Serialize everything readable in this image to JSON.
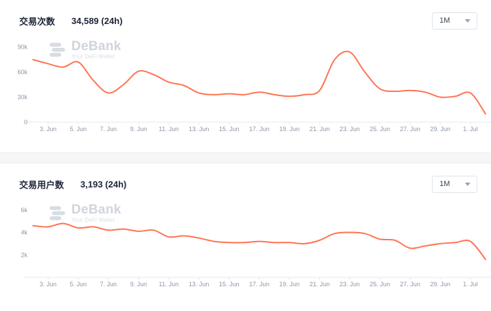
{
  "colors": {
    "line": "#ff7352",
    "axis_label": "#8e96a6",
    "axis_line": "#e7eaef",
    "title_text": "#20273a",
    "watermark": "#d6dae1",
    "panel_gap": "#f5f6f8",
    "dropdown_border": "#dfe3ea"
  },
  "panels": [
    {
      "title": "交易次数",
      "value": "34,589 (24h)",
      "range": "1M"
    },
    {
      "title": "交易用户数",
      "value": "3,193 (24h)",
      "range": "1M"
    }
  ],
  "watermark": {
    "brand": "DeBank",
    "tagline": "Your DeFi Wallet"
  },
  "chart_data": [
    {
      "type": "line",
      "title": "交易次数 (24h)",
      "categories": [
        "2. Jun",
        "3. Jun",
        "4. Jun",
        "5. Jun",
        "6. Jun",
        "7. Jun",
        "8. Jun",
        "9. Jun",
        "10. Jun",
        "11. Jun",
        "12. Jun",
        "13. Jun",
        "14. Jun",
        "15. Jun",
        "16. Jun",
        "17. Jun",
        "18. Jun",
        "19. Jun",
        "20. Jun",
        "21. Jun",
        "22. Jun",
        "23. Jun",
        "24. Jun",
        "25. Jun",
        "26. Jun",
        "27. Jun",
        "28. Jun",
        "29. Jun",
        "30. Jun",
        "1. Jul",
        "2. Jul"
      ],
      "values": [
        75000,
        70000,
        66000,
        72000,
        50000,
        35000,
        45000,
        61000,
        57000,
        48000,
        44000,
        35000,
        33000,
        34000,
        33000,
        36000,
        33000,
        31000,
        33000,
        38000,
        75000,
        84000,
        60000,
        40000,
        37000,
        38000,
        36000,
        30000,
        31000,
        35000,
        10000
      ],
      "ylim": [
        0,
        97000
      ],
      "yticks": [
        {
          "value": 0,
          "label": "0"
        },
        {
          "value": 30000,
          "label": "30k"
        },
        {
          "value": 60000,
          "label": "60k"
        },
        {
          "value": 90000,
          "label": "90k"
        }
      ],
      "xtick_start": 1,
      "xtick_step": 2,
      "line_color": "#ff7352",
      "grid": false,
      "legend": "none"
    },
    {
      "type": "line",
      "title": "交易用户数 (24h)",
      "categories": [
        "2. Jun",
        "3. Jun",
        "4. Jun",
        "5. Jun",
        "6. Jun",
        "7. Jun",
        "8. Jun",
        "9. Jun",
        "10. Jun",
        "11. Jun",
        "12. Jun",
        "13. Jun",
        "14. Jun",
        "15. Jun",
        "16. Jun",
        "17. Jun",
        "18. Jun",
        "19. Jun",
        "20. Jun",
        "21. Jun",
        "22. Jun",
        "23. Jun",
        "24. Jun",
        "25. Jun",
        "26. Jun",
        "27. Jun",
        "28. Jun",
        "29. Jun",
        "30. Jun",
        "1. Jul",
        "2. Jul"
      ],
      "values": [
        4600,
        4500,
        4800,
        4400,
        4500,
        4200,
        4300,
        4100,
        4200,
        3600,
        3700,
        3500,
        3200,
        3100,
        3100,
        3200,
        3100,
        3100,
        3000,
        3300,
        3900,
        4000,
        3900,
        3400,
        3300,
        2600,
        2800,
        3000,
        3100,
        3200,
        1600
      ],
      "ylim": [
        0,
        6600
      ],
      "yticks": [
        {
          "value": 2000,
          "label": "2k"
        },
        {
          "value": 4000,
          "label": "4k"
        },
        {
          "value": 6000,
          "label": "6k"
        }
      ],
      "xtick_start": 1,
      "xtick_step": 2,
      "line_color": "#ff7352",
      "grid": false,
      "legend": "none"
    }
  ]
}
